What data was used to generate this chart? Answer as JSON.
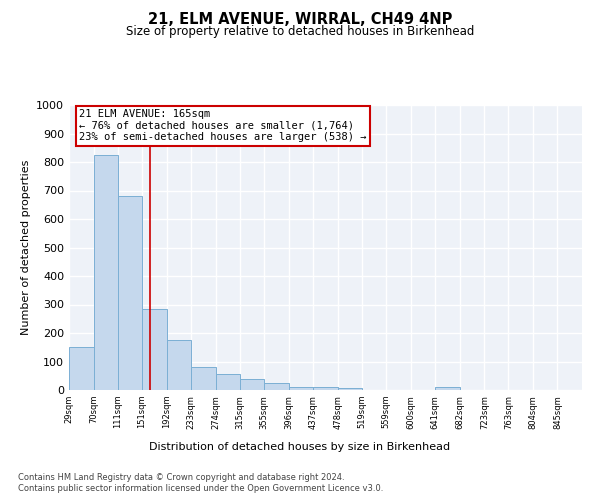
{
  "title": "21, ELM AVENUE, WIRRAL, CH49 4NP",
  "subtitle": "Size of property relative to detached houses in Birkenhead",
  "xlabel": "Distribution of detached houses by size in Birkenhead",
  "ylabel": "Number of detached properties",
  "bar_edges": [
    29,
    70,
    111,
    151,
    192,
    233,
    274,
    315,
    355,
    396,
    437,
    478,
    519,
    559,
    600,
    641,
    682,
    723,
    763,
    804,
    845
  ],
  "bar_heights": [
    150,
    825,
    680,
    285,
    175,
    80,
    55,
    40,
    25,
    10,
    10,
    8,
    0,
    0,
    0,
    10,
    0,
    0,
    0,
    0,
    0
  ],
  "bar_color": "#c5d8ed",
  "bar_edge_color": "#7bafd4",
  "property_size": 165,
  "annotation_line1": "21 ELM AVENUE: 165sqm",
  "annotation_line2": "← 76% of detached houses are smaller (1,764)",
  "annotation_line3": "23% of semi-detached houses are larger (538) →",
  "annotation_box_color": "#ffffff",
  "annotation_border_color": "#cc0000",
  "vline_color": "#cc0000",
  "ylim": [
    0,
    1000
  ],
  "yticks": [
    0,
    100,
    200,
    300,
    400,
    500,
    600,
    700,
    800,
    900,
    1000
  ],
  "bg_color": "#eef2f8",
  "grid_color": "#ffffff",
  "footer_line1": "Contains HM Land Registry data © Crown copyright and database right 2024.",
  "footer_line2": "Contains public sector information licensed under the Open Government Licence v3.0."
}
